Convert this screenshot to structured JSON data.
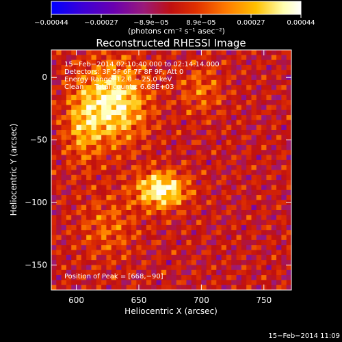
{
  "chart_data": {
    "type": "heatmap",
    "title": "Reconstructed RHESSI Image",
    "xlabel": "Heliocentric X (arcsec)",
    "ylabel": "Heliocentric Y (arcsec)",
    "xlim": [
      580,
      772
    ],
    "ylim": [
      -170,
      22
    ],
    "x_ticks": [
      "600",
      "650",
      "700",
      "750"
    ],
    "y_ticks": [
      "0",
      "−50",
      "−100",
      "−150"
    ],
    "colorbar": {
      "range": [
        -0.00044,
        0.00044
      ],
      "tick_labels": [
        "−0.00044",
        "−0.00027",
        "−8.9e−05",
        "8.9e−05",
        "0.00027",
        "0.00044"
      ],
      "unit_text": "(photons cm⁻² s⁻¹ asec⁻²)",
      "colormap": [
        "#0000ff",
        "#3a00d8",
        "#6a00b0",
        "#9a1a7a",
        "#c01010",
        "#e03000",
        "#ff7a00",
        "#ffc000",
        "#ffffb0",
        "#ffffff"
      ]
    },
    "annotations": [
      "15−Feb−2014 02:10:40.000 to 02:14:14.000",
      "Detectors: 3F 5F 6F 7F 8F 9F, Att 0",
      "Energy Range: 12.0 − 25.0 keV",
      "Clean     Total counts: 6.68E+03"
    ],
    "peak_label": "Position of Peak = [668,−90]",
    "sources": [
      {
        "x": 668,
        "y": -90,
        "amplitude": 0.00044,
        "sigma_x": 14,
        "sigma_y": 10
      },
      {
        "x": 630,
        "y": -20,
        "amplitude": 0.0004,
        "sigma_x": 18,
        "sigma_y": 22
      },
      {
        "x": 605,
        "y": -40,
        "amplitude": 0.0002,
        "sigma_x": 10,
        "sigma_y": 20
      },
      {
        "x": 700,
        "y": -10,
        "amplitude": 0.00015,
        "sigma_x": 12,
        "sigma_y": 14
      },
      {
        "x": 625,
        "y": -120,
        "amplitude": 0.00014,
        "sigma_x": 16,
        "sigma_y": 18
      }
    ]
  },
  "footer_timestamp": "15−Feb−2014 11:09"
}
